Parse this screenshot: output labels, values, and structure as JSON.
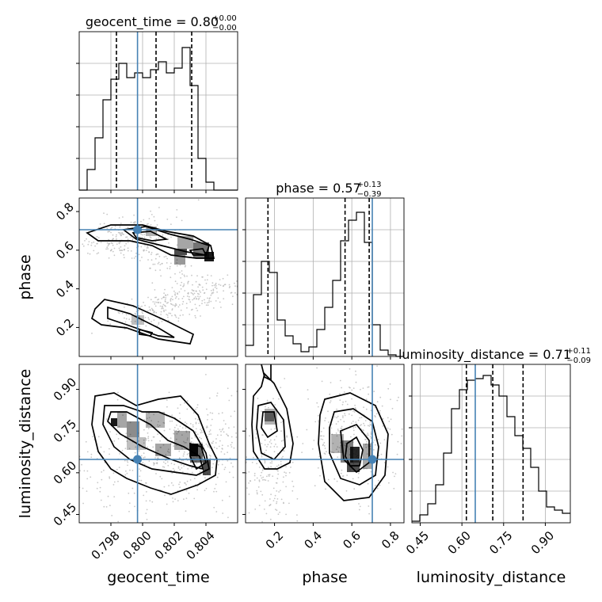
{
  "chart_data": {
    "type": "corner",
    "parameters": [
      "geocent_time",
      "phase",
      "luminosity_distance"
    ],
    "axis_labels": [
      "geocent_time",
      "phase",
      "luminosity_distance"
    ],
    "ranges": {
      "geocent_time": [
        0.796,
        0.806
      ],
      "phase": [
        0.05,
        0.87
      ],
      "luminosity_distance": [
        0.42,
        0.99
      ]
    },
    "ticks": {
      "geocent_time": {
        "values": [
          0.798,
          0.8,
          0.802,
          0.804
        ],
        "labels": [
          "0.798",
          "0.800",
          "0.802",
          "0.804"
        ]
      },
      "phase": {
        "values": [
          0.2,
          0.4,
          0.6,
          0.8
        ],
        "labels": [
          "0.2",
          "0.4",
          "0.6",
          "0.8"
        ]
      },
      "luminosity_distance": {
        "values": [
          0.45,
          0.6,
          0.75,
          0.9
        ],
        "labels": [
          "0.45",
          "0.60",
          "0.75",
          "0.90"
        ]
      }
    },
    "titles": [
      {
        "param": "geocent_time",
        "prefix": "geocent_time = 0.80",
        "plus": "+0.00",
        "minus": "−0.00"
      },
      {
        "param": "phase",
        "prefix": "phase = 0.57",
        "plus": "+0.13",
        "minus": "−0.39"
      },
      {
        "param": "luminosity_distance",
        "prefix": "luminosity_distance = 0.71",
        "plus": "+0.11",
        "minus": "−0.09"
      }
    ],
    "truths": {
      "geocent_time": 0.79968,
      "phase": 0.706,
      "luminosity_distance": 0.648
    },
    "quantiles": {
      "geocent_time": [
        0.79835,
        0.80085,
        0.8031
      ],
      "phase": [
        0.166,
        0.565,
        0.69
      ],
      "luminosity_distance": [
        0.616,
        0.711,
        0.82
      ]
    },
    "histograms": {
      "geocent_time": {
        "edges": [
          0.796,
          0.806
        ],
        "counts": [
          0,
          0.13,
          0.33,
          0.57,
          0.7,
          0.8,
          0.71,
          0.74,
          0.71,
          0.76,
          0.81,
          0.74,
          0.77,
          0.9,
          0.66,
          0.2,
          0.05,
          0,
          0,
          0
        ]
      },
      "phase": {
        "edges": [
          0.05,
          0.87
        ],
        "counts": [
          0.07,
          0.39,
          0.6,
          0.53,
          0.23,
          0.13,
          0.08,
          0.03,
          0.06,
          0.17,
          0.31,
          0.48,
          0.73,
          0.86,
          0.91,
          0.72,
          0.2,
          0.04,
          0.01,
          0
        ]
      },
      "luminosity_distance": {
        "edges": [
          0.42,
          0.99
        ],
        "counts": [
          0.01,
          0.05,
          0.12,
          0.24,
          0.44,
          0.72,
          0.84,
          0.9,
          0.91,
          0.93,
          0.87,
          0.8,
          0.67,
          0.55,
          0.47,
          0.35,
          0.2,
          0.1,
          0.08,
          0.06
        ]
      }
    },
    "colors": {
      "truth": "#4682b4",
      "contour": "#000000",
      "hist": "#000000",
      "quantile": "#000000",
      "density": "#000000",
      "points": "#b0b0b0"
    },
    "grid": true
  }
}
